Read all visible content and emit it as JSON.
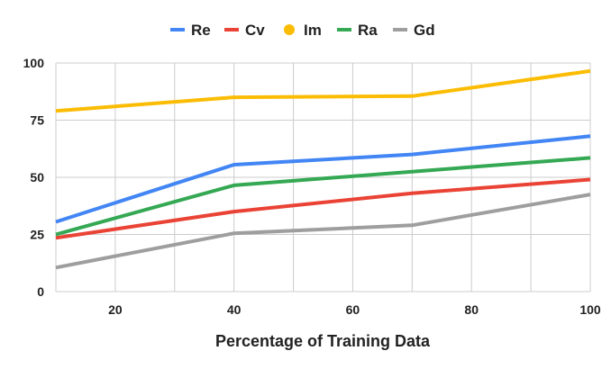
{
  "chart_data": {
    "type": "line",
    "title": "",
    "xlabel": "Percentage of Training Data",
    "ylabel": "",
    "x": [
      10,
      40,
      70,
      100
    ],
    "xlim": [
      10,
      100
    ],
    "ylim": [
      0,
      100
    ],
    "x_ticks": [
      "20",
      "40",
      "60",
      "80",
      "100"
    ],
    "x_tick_values": [
      20,
      40,
      60,
      80,
      100
    ],
    "y_ticks": [
      "0",
      "25",
      "50",
      "75",
      "100"
    ],
    "y_tick_values": [
      0,
      25,
      50,
      75,
      100
    ],
    "grid": true,
    "legend_position": "top",
    "series": [
      {
        "name": "Re",
        "color": "#4285f4",
        "values": [
          30.5,
          55.5,
          60,
          68
        ]
      },
      {
        "name": "Cv",
        "color": "#ea4335",
        "values": [
          23.5,
          35,
          43,
          49
        ]
      },
      {
        "name": "Im",
        "color": "#fbbc04",
        "values": [
          79,
          85,
          85.5,
          96.5
        ]
      },
      {
        "name": "Ra",
        "color": "#34a853",
        "values": [
          25,
          46.5,
          52.5,
          58.5
        ]
      },
      {
        "name": "Gd",
        "color": "#9e9e9e",
        "values": [
          10.5,
          25.5,
          29,
          42.5
        ]
      }
    ]
  }
}
